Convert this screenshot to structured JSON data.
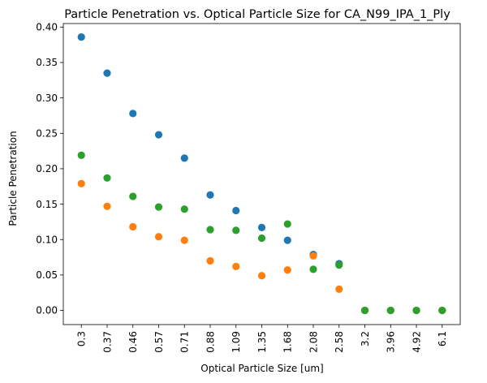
{
  "chart_data": {
    "type": "scatter",
    "title": "Particle Penetration vs. Optical Particle Size for CA_N99_IPA_1_Ply",
    "xlabel": "Optical Particle Size [um]",
    "ylabel": "Particle Penetration",
    "categories": [
      "0.3",
      "0.37",
      "0.46",
      "0.57",
      "0.71",
      "0.88",
      "1.09",
      "1.35",
      "1.68",
      "2.08",
      "2.58",
      "3.2",
      "3.96",
      "4.92",
      "6.1"
    ],
    "ylim": [
      -0.02,
      0.405
    ],
    "yticks": [
      "0.00",
      "0.05",
      "0.10",
      "0.15",
      "0.20",
      "0.25",
      "0.30",
      "0.35",
      "0.40"
    ],
    "grid": false,
    "series": [
      {
        "color": "#1f77b4",
        "values": [
          0.386,
          0.335,
          0.278,
          0.248,
          0.215,
          0.163,
          0.141,
          0.117,
          0.099,
          0.079,
          0.066,
          0.0,
          0.0,
          0.0,
          0.0
        ]
      },
      {
        "color": "#ff7f0e",
        "values": [
          0.179,
          0.147,
          0.118,
          0.104,
          0.099,
          0.07,
          0.062,
          0.049,
          0.057,
          0.077,
          0.03,
          0.0,
          0.0,
          0.0,
          0.0
        ]
      },
      {
        "color": "#2ca02c",
        "values": [
          0.219,
          0.187,
          0.161,
          0.146,
          0.143,
          0.114,
          0.113,
          0.102,
          0.122,
          0.058,
          0.064,
          0.0,
          0.0,
          0.0,
          0.0
        ]
      }
    ]
  }
}
